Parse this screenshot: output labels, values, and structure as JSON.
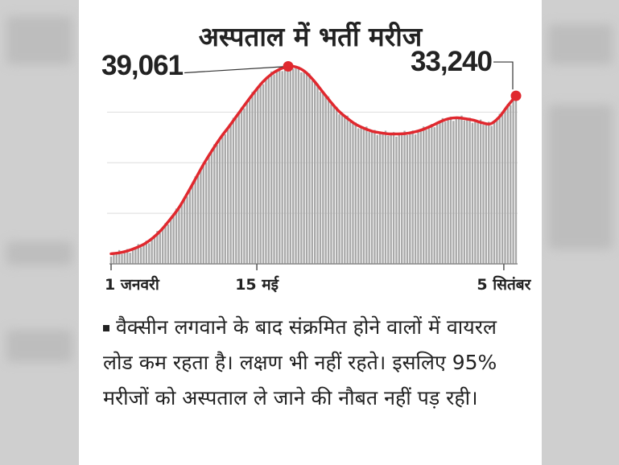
{
  "colors": {
    "bar": "#a9a9a9",
    "line": "#e0282e",
    "text": "#222222"
  },
  "chart_data": {
    "type": "bar",
    "title": "अस्पताल में भर्ती मरीज",
    "x_ticks": [
      {
        "label": "1 जनवरी",
        "t": 0
      },
      {
        "label": "15 मई",
        "t": 0.36
      },
      {
        "label": "5 सितंबर",
        "t": 0.97
      }
    ],
    "annotations": [
      {
        "label": "39,061",
        "point": "peak"
      },
      {
        "label": "33,240",
        "point": "last"
      }
    ],
    "series": [
      {
        "values": [
          2000,
          2200,
          2600,
          3200,
          4000,
          5200,
          6800,
          8800,
          11000,
          13800,
          16800,
          19800,
          22500,
          25000,
          27200,
          29500,
          31800,
          34000,
          36000,
          37500,
          38500,
          39061,
          38900,
          38000,
          36300,
          34200,
          32100,
          30200,
          28800,
          27600,
          26800,
          26200,
          25900,
          25700,
          25700,
          25800,
          26100,
          26600,
          27300,
          28100,
          28700,
          28900,
          28700,
          28400,
          27900,
          27700,
          29000,
          31200,
          33240
        ]
      }
    ],
    "ylim": [
      0,
      42000
    ]
  },
  "note": {
    "text": "वैक्सीन लगवाने के बाद संक्रमित होने वालों में वायरल लोड कम रहता है। लक्षण भी नहीं रहते। इसलिए 95% मरीजों को अस्पताल ले जाने की नौबत नहीं पड़ रही।"
  }
}
